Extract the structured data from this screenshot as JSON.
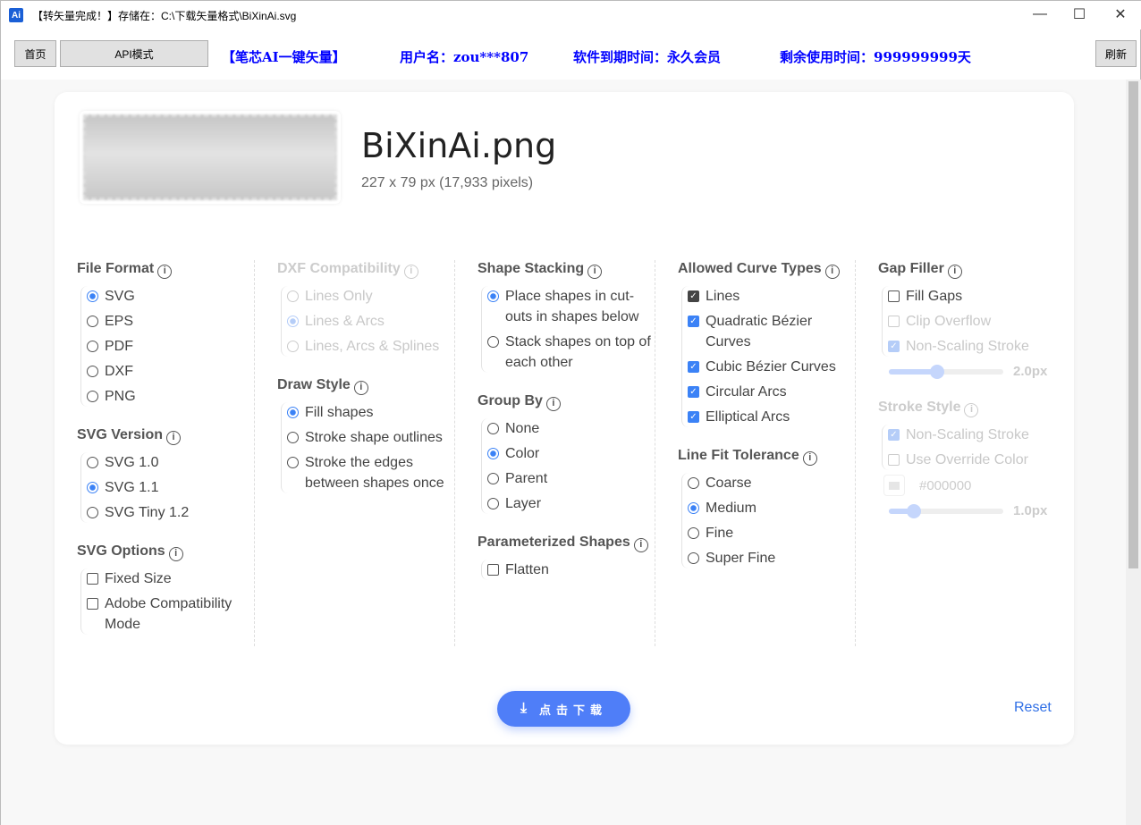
{
  "window": {
    "title": "【转矢量完成！】存储在：C:\\下载矢量格式\\BiXinAi.svg",
    "icon_text": "Ai",
    "minimize": "—",
    "maximize": "☐",
    "close": "✕"
  },
  "toolbar": {
    "home": "首页",
    "api": "API模式",
    "brand": "【笔芯AI一键矢量】",
    "user": "用户名：zou***807",
    "expiry": "软件到期时间：永久会员",
    "remaining": "剩余使用时间：999999999天",
    "refresh": "刷新"
  },
  "file": {
    "name": "BiXinAi.png",
    "dimensions": "227 x 79 px (17,933 pixels)"
  },
  "columns": [
    [
      {
        "title": "File Format",
        "type": "radio",
        "items": [
          {
            "label": "SVG",
            "checked": true
          },
          {
            "label": "EPS"
          },
          {
            "label": "PDF"
          },
          {
            "label": "DXF"
          },
          {
            "label": "PNG"
          }
        ]
      },
      {
        "title": "SVG Version",
        "type": "radio",
        "items": [
          {
            "label": "SVG 1.0"
          },
          {
            "label": "SVG 1.1",
            "checked": true
          },
          {
            "label": "SVG Tiny 1.2"
          }
        ]
      },
      {
        "title": "SVG Options",
        "type": "check",
        "items": [
          {
            "label": "Fixed Size"
          },
          {
            "label": "Adobe Compatibility Mode"
          }
        ]
      }
    ],
    [
      {
        "title": "DXF Compatibility",
        "disabled": true,
        "type": "radio",
        "items": [
          {
            "label": "Lines Only",
            "disabled": true
          },
          {
            "label": "Lines & Arcs",
            "checked": true,
            "disabled": true
          },
          {
            "label": "Lines, Arcs & Splines",
            "disabled": true
          }
        ]
      },
      {
        "title": "Draw Style",
        "type": "radio",
        "items": [
          {
            "label": "Fill shapes",
            "checked": true
          },
          {
            "label": "Stroke shape outlines"
          },
          {
            "label": "Stroke the edges between shapes once"
          }
        ]
      }
    ],
    [
      {
        "title": "Shape Stacking",
        "type": "radio",
        "items": [
          {
            "label": "Place shapes in cut-outs in shapes below",
            "checked": true
          },
          {
            "label": "Stack shapes on top of each other"
          }
        ]
      },
      {
        "title": "Group By",
        "type": "radio",
        "items": [
          {
            "label": "None"
          },
          {
            "label": "Color",
            "checked": true
          },
          {
            "label": "Parent"
          },
          {
            "label": "Layer"
          }
        ]
      },
      {
        "title": "Parameterized Shapes",
        "type": "check",
        "items": [
          {
            "label": "Flatten"
          }
        ]
      }
    ],
    [
      {
        "title": "Allowed Curve Types",
        "type": "check",
        "items": [
          {
            "label": "Lines",
            "checked": true,
            "dark": true
          },
          {
            "label": "Quadratic Bézier Curves",
            "checked": true
          },
          {
            "label": "Cubic Bézier Curves",
            "checked": true
          },
          {
            "label": "Circular Arcs",
            "checked": true
          },
          {
            "label": "Elliptical Arcs",
            "checked": true
          }
        ]
      },
      {
        "title": "Line Fit Tolerance",
        "type": "radio",
        "items": [
          {
            "label": "Coarse"
          },
          {
            "label": "Medium",
            "checked": true
          },
          {
            "label": "Fine"
          },
          {
            "label": "Super Fine"
          }
        ]
      }
    ],
    [
      {
        "title": "Gap Filler",
        "type": "check",
        "items": [
          {
            "label": "Fill Gaps"
          },
          {
            "label": "Clip Overflow",
            "disabled": true
          },
          {
            "label": "Non-Scaling Stroke",
            "checked": true,
            "disabled": true
          }
        ],
        "slider": {
          "value": "2.0px",
          "level": 0.42
        }
      },
      {
        "title": "Stroke Style",
        "disabled": true,
        "type": "check",
        "items": [
          {
            "label": "Non-Scaling Stroke",
            "checked": true,
            "disabled": true
          },
          {
            "label": "Use Override Color",
            "disabled": true
          }
        ],
        "color": "#000000",
        "slider": {
          "value": "1.0px",
          "level": 0.22
        }
      }
    ]
  ],
  "info_icon": "ⓘ",
  "download": {
    "label": "点击下载",
    "icon": "download-icon"
  },
  "reset": "Reset"
}
